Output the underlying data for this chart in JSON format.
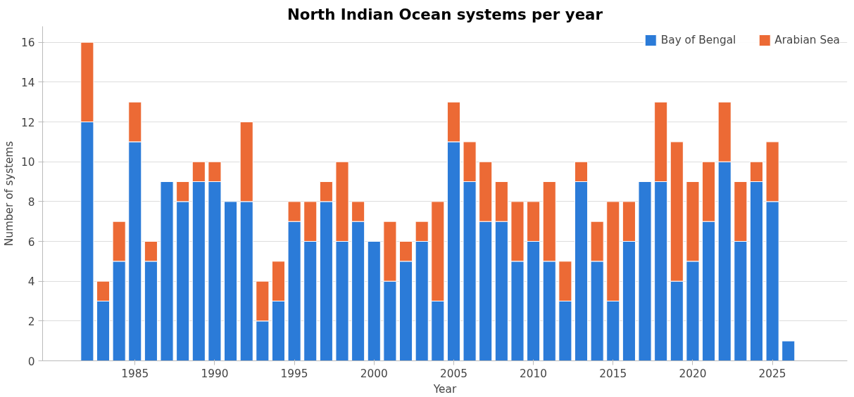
{
  "chart_data": {
    "type": "bar",
    "stacked": true,
    "title": "North Indian Ocean systems per year",
    "xlabel": "Year",
    "ylabel": "Number of systems",
    "x": [
      1982,
      1983,
      1984,
      1985,
      1986,
      1987,
      1988,
      1989,
      1990,
      1991,
      1992,
      1993,
      1994,
      1995,
      1996,
      1997,
      1998,
      1999,
      2000,
      2001,
      2002,
      2003,
      2004,
      2005,
      2006,
      2007,
      2008,
      2009,
      2010,
      2011,
      2012,
      2013,
      2014,
      2015,
      2016,
      2017,
      2018,
      2019,
      2020,
      2021,
      2022,
      2023,
      2024,
      2025,
      2026
    ],
    "series": [
      {
        "name": "Bay of Bengal",
        "color": "#2b7bd8",
        "values": [
          12,
          3,
          5,
          11,
          5,
          9,
          8,
          9,
          9,
          8,
          8,
          2,
          3,
          7,
          6,
          8,
          6,
          7,
          6,
          4,
          5,
          6,
          3,
          11,
          9,
          7,
          7,
          5,
          6,
          5,
          3,
          9,
          5,
          3,
          6,
          9,
          9,
          4,
          5,
          7,
          10,
          6,
          9,
          8,
          1
        ]
      },
      {
        "name": "Arabian Sea",
        "color": "#ec6a35",
        "values": [
          4,
          1,
          2,
          2,
          1,
          0,
          1,
          1,
          1,
          0,
          4,
          2,
          2,
          1,
          2,
          1,
          4,
          1,
          0,
          3,
          1,
          1,
          5,
          2,
          2,
          3,
          2,
          3,
          2,
          4,
          2,
          1,
          2,
          5,
          2,
          0,
          4,
          7,
          4,
          3,
          3,
          3,
          1,
          3,
          0
        ]
      }
    ],
    "xlim": [
      1979.2,
      2029.7
    ],
    "xticks": [
      1985,
      1990,
      1995,
      2000,
      2005,
      2010,
      2015,
      2020,
      2025
    ],
    "ylim": [
      0,
      16.8
    ],
    "yticks": [
      0,
      2,
      4,
      6,
      8,
      10,
      12,
      14,
      16
    ],
    "grid": "y",
    "legend": "top right"
  }
}
